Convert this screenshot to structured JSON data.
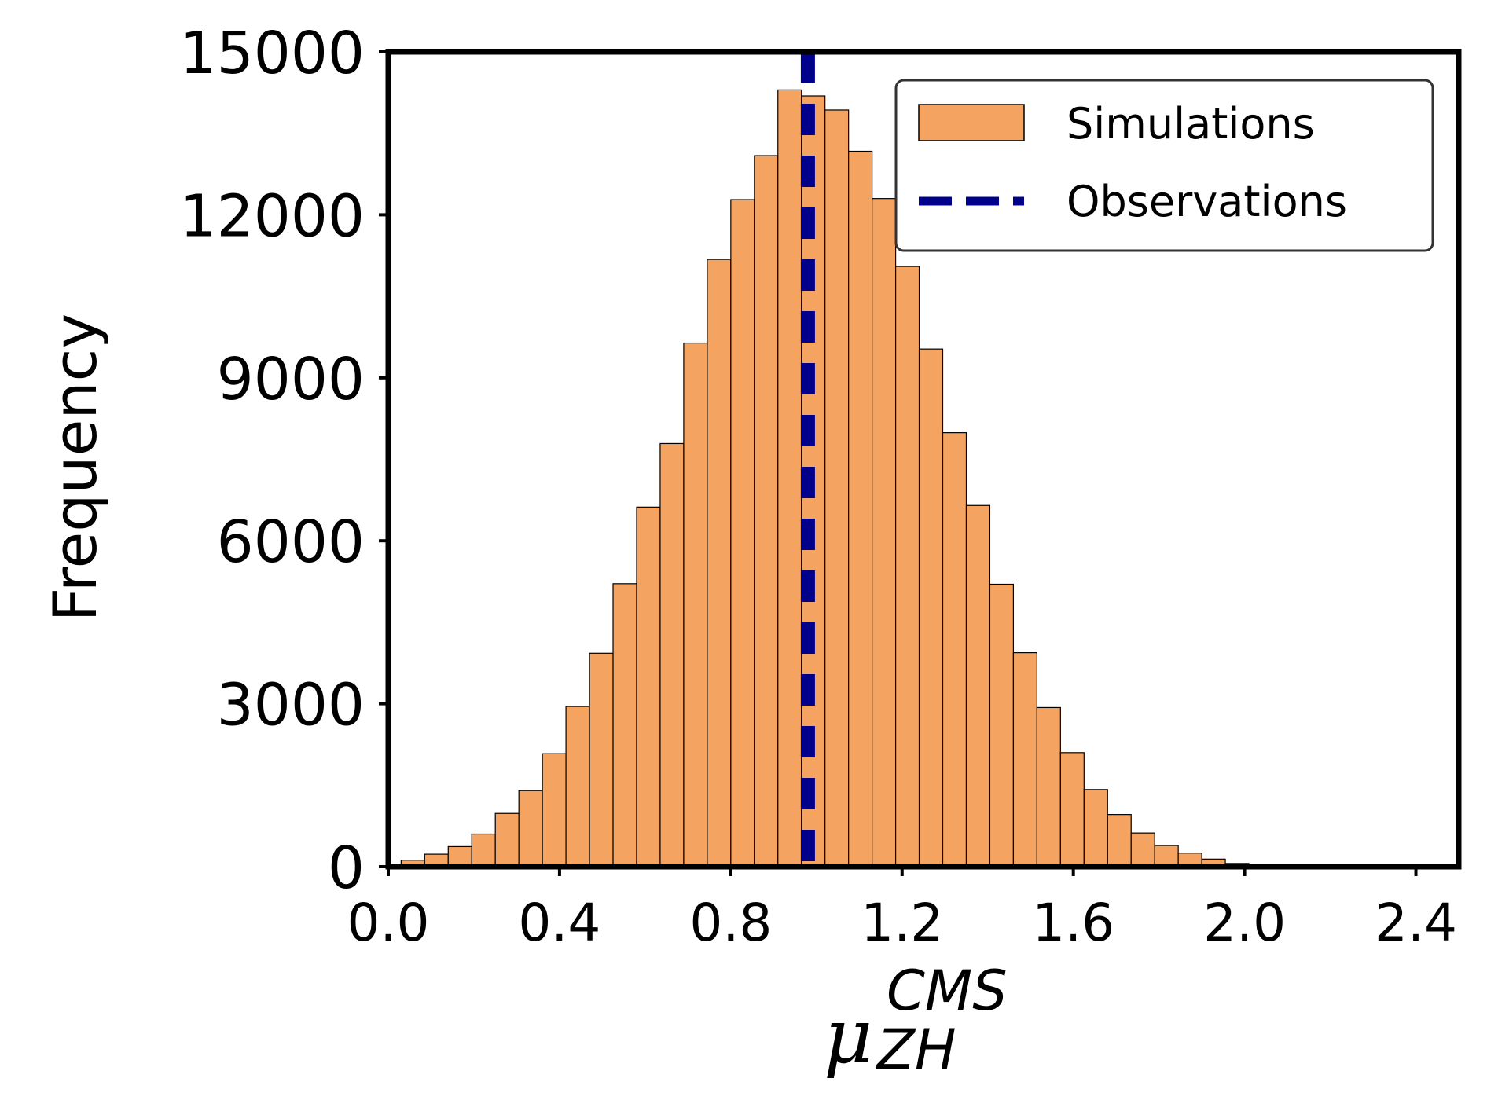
{
  "chart_data": {
    "type": "bar",
    "subtype": "histogram",
    "title": "",
    "xlabel": {
      "symbol": "μ",
      "superscript": "CMS",
      "subscript": "ZH"
    },
    "ylabel": "Frequency",
    "xlim": [
      0.0,
      2.5
    ],
    "ylim": [
      0,
      15000
    ],
    "x_ticks": [
      "0.0",
      "0.4",
      "0.8",
      "1.2",
      "1.6",
      "2.0",
      "2.4"
    ],
    "x_tick_values": [
      0.0,
      0.4,
      0.8,
      1.2,
      1.6,
      2.0,
      2.4
    ],
    "y_ticks": [
      "0",
      "3000",
      "6000",
      "9000",
      "12000",
      "15000"
    ],
    "y_tick_values": [
      0,
      3000,
      6000,
      9000,
      12000,
      15000
    ],
    "grid": false,
    "legend_position": "top-right",
    "bin_width": 0.055,
    "series": [
      {
        "name": "Simulations",
        "color": "#f4a460",
        "edge_color": "#000000",
        "bin_starts": [
          0.03,
          0.085,
          0.14,
          0.195,
          0.25,
          0.305,
          0.36,
          0.415,
          0.47,
          0.525,
          0.58,
          0.635,
          0.69,
          0.745,
          0.8,
          0.855,
          0.91,
          0.965,
          1.02,
          1.075,
          1.13,
          1.185,
          1.24,
          1.295,
          1.35,
          1.405,
          1.46,
          1.515,
          1.57,
          1.625,
          1.68,
          1.735,
          1.79,
          1.845,
          1.9,
          1.955,
          2.01,
          2.065,
          2.12,
          2.175,
          2.23,
          2.285,
          2.34,
          2.395,
          2.45
        ],
        "values": [
          120,
          230,
          370,
          600,
          980,
          1400,
          2080,
          2950,
          3930,
          5210,
          6620,
          7790,
          9640,
          11180,
          12280,
          13090,
          14300,
          14190,
          13930,
          13170,
          12300,
          11050,
          9530,
          7990,
          6650,
          5200,
          3940,
          2930,
          2100,
          1420,
          960,
          620,
          390,
          250,
          140,
          60,
          25,
          12,
          6,
          3,
          2,
          1,
          1,
          0,
          0
        ]
      },
      {
        "name": "Observations",
        "type": "vline",
        "x": 0.98,
        "color": "#00008b",
        "style": "dashed"
      }
    ]
  }
}
